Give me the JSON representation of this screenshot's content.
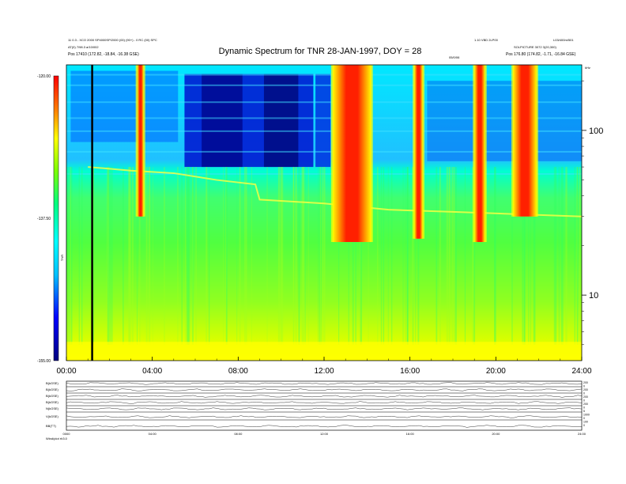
{
  "header": {
    "title": "Dynamic Spectrum for TNR 28-JAN-1997, DOY = 28",
    "left_line1": "11 0.3 - XCO 2000 SP4000SP/2000 (00) (90+) - 0 RC (00) SPC",
    "left_line2": "AT(0) 7/98.3 a/10/002",
    "left_pos": "Pos    17410 (172.82, -18.84, -16.38 GSE)",
    "right_line1": "1.10 VBD 2LP00",
    "right_line2": "L03/400m/501",
    "right_line3": "SOLPICTURE 3072 3(20,300)",
    "right_pos": "Pos    176.80 (174.82, -1.71, -16.84 GSE)",
    "center_label": "05/0/06"
  },
  "chart_data": {
    "type": "heatmap",
    "title": "Dynamic Spectrum for TNR 28-JAN-1997, DOY = 28",
    "x_ticks": [
      "00:00",
      "04:00",
      "08:00",
      "12:00",
      "16:00",
      "20:00",
      "24:00"
    ],
    "x_range_hours": [
      0,
      24
    ],
    "y_scale": "log",
    "y_range_khz": [
      4,
      250
    ],
    "y_unit": "kHz",
    "y_ticks": [
      "100",
      "10"
    ],
    "colorbar_ticks": [
      "-120.00",
      "-137.50",
      "-155.00"
    ],
    "colorbar_range": [
      -155,
      -120
    ],
    "colorbar_label": "TNR",
    "colors": [
      "#000080",
      "#0000ff",
      "#0080ff",
      "#00ffff",
      "#00ff80",
      "#80ff00",
      "#ffff00",
      "#ff8000",
      "#ff0000",
      "#800000"
    ],
    "marker_line_hour": 1.2,
    "radio_bursts": [
      {
        "start_hour": 3.3,
        "end_hour": 3.6,
        "low_khz": 30
      },
      {
        "start_hour": 12.4,
        "end_hour": 14.2,
        "low_khz": 21
      },
      {
        "start_hour": 16.2,
        "end_hour": 16.6,
        "low_khz": 22
      },
      {
        "start_hour": 19.0,
        "end_hour": 19.5,
        "low_khz": 21
      },
      {
        "start_hour": 20.8,
        "end_hour": 21.9,
        "low_khz": 30
      }
    ]
  },
  "bottom_panels": {
    "labels": [
      "B(kGSE)",
      "B(kGSE)",
      "B(kGSE)",
      "B(kGSE)",
      "N(kGSE)",
      "V(kGSE)",
      "BB(TT)"
    ],
    "right_ticks": [
      "200",
      "0",
      "200",
      "0",
      "200",
      "0",
      "200",
      "0",
      "5",
      "1000",
      "0",
      "100",
      "0"
    ],
    "x_ticks": [
      "0000",
      "04:00",
      "08:00",
      "12:00",
      "16:00",
      "20:00",
      "24:00"
    ],
    "footer": "Wind/plot rh3.0"
  }
}
